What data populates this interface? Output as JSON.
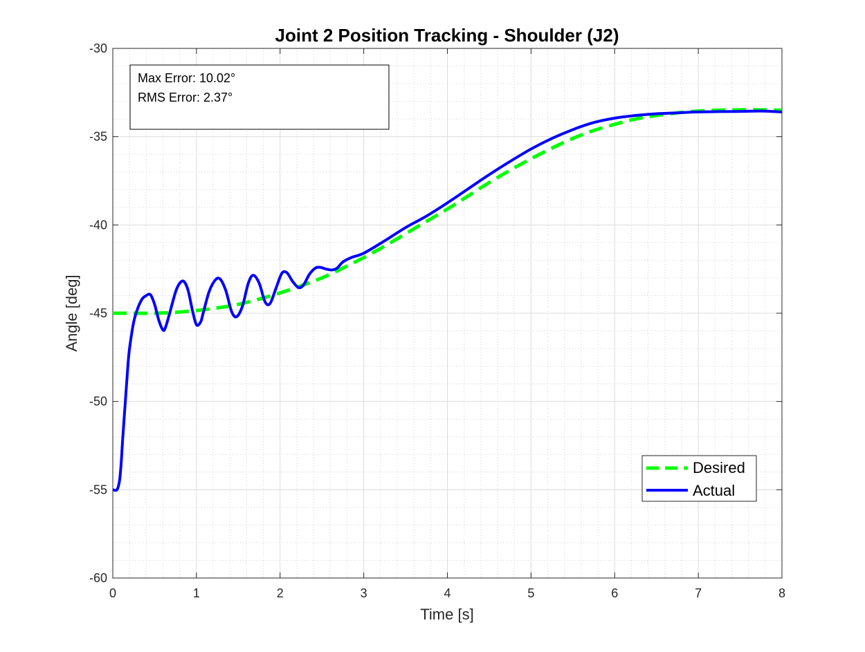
{
  "chart_data": {
    "type": "line",
    "title": "Joint 2 Position Tracking - Shoulder (J2)",
    "xlabel": "Time [s]",
    "ylabel": "Angle [deg]",
    "xlim": [
      0,
      8
    ],
    "ylim": [
      -60,
      -30
    ],
    "x_ticks": [
      "0",
      "1",
      "2",
      "3",
      "4",
      "5",
      "6",
      "7",
      "8"
    ],
    "y_ticks": [
      "-30",
      "-35",
      "-40",
      "-45",
      "-50",
      "-55",
      "-60"
    ],
    "grid": true,
    "minor_grid": true,
    "legend_position": "bottom-right",
    "annotation": [
      "Max Error: 10.02°",
      "RMS Error: 2.37°"
    ],
    "series": [
      {
        "name": "Desired",
        "color": "#00ff00",
        "style": "dashed",
        "x": [
          0,
          0.25,
          0.5,
          0.75,
          1.0,
          1.25,
          1.5,
          1.75,
          2.0,
          2.25,
          2.5,
          2.75,
          3.0,
          3.25,
          3.5,
          3.75,
          4.0,
          4.25,
          4.5,
          4.75,
          5.0,
          5.25,
          5.5,
          5.75,
          6.0,
          6.25,
          6.5,
          6.75,
          7.0,
          7.25,
          7.5,
          7.75,
          8.0
        ],
        "y": [
          -45.0,
          -45.0,
          -45.0,
          -44.95,
          -44.85,
          -44.7,
          -44.5,
          -44.2,
          -43.85,
          -43.45,
          -43.0,
          -42.45,
          -41.85,
          -41.2,
          -40.5,
          -39.8,
          -39.1,
          -38.35,
          -37.6,
          -36.9,
          -36.25,
          -35.65,
          -35.1,
          -34.65,
          -34.3,
          -34.0,
          -33.8,
          -33.65,
          -33.55,
          -33.5,
          -33.48,
          -33.48,
          -33.5
        ]
      },
      {
        "name": "Actual",
        "color": "#0000ff",
        "style": "solid",
        "x": [
          0,
          0.05,
          0.08,
          0.1,
          0.12,
          0.15,
          0.18,
          0.2,
          0.25,
          0.3,
          0.35,
          0.4,
          0.45,
          0.5,
          0.55,
          0.6,
          0.63,
          0.68,
          0.75,
          0.8,
          0.85,
          0.9,
          0.95,
          1.0,
          1.05,
          1.08,
          1.15,
          1.22,
          1.28,
          1.35,
          1.42,
          1.48,
          1.55,
          1.62,
          1.68,
          1.75,
          1.82,
          1.88,
          1.95,
          2.02,
          2.08,
          2.15,
          2.22,
          2.28,
          2.35,
          2.42,
          2.48,
          2.55,
          2.62,
          2.68,
          2.75,
          2.85,
          3.0,
          3.25,
          3.5,
          3.75,
          4.0,
          4.25,
          4.5,
          4.75,
          5.0,
          5.25,
          5.5,
          5.75,
          6.0,
          6.25,
          6.5,
          6.75,
          7.0,
          7.25,
          7.5,
          7.75,
          8.0
        ],
        "y": [
          -55.0,
          -55.0,
          -54.5,
          -53.5,
          -52.0,
          -50.0,
          -48.0,
          -47.0,
          -45.5,
          -44.7,
          -44.2,
          -44.0,
          -43.95,
          -44.5,
          -45.4,
          -45.95,
          -45.8,
          -45.0,
          -43.8,
          -43.3,
          -43.2,
          -43.7,
          -44.8,
          -45.65,
          -45.5,
          -45.0,
          -43.8,
          -43.15,
          -43.05,
          -43.7,
          -44.9,
          -45.2,
          -44.6,
          -43.3,
          -42.85,
          -43.3,
          -44.35,
          -44.45,
          -43.6,
          -42.75,
          -42.7,
          -43.2,
          -43.55,
          -43.4,
          -42.8,
          -42.45,
          -42.4,
          -42.5,
          -42.55,
          -42.45,
          -42.1,
          -41.85,
          -41.6,
          -40.9,
          -40.15,
          -39.5,
          -38.75,
          -37.95,
          -37.15,
          -36.4,
          -35.7,
          -35.1,
          -34.6,
          -34.2,
          -33.95,
          -33.8,
          -33.7,
          -33.65,
          -33.6,
          -33.58,
          -33.57,
          -33.55,
          -33.6
        ]
      }
    ]
  }
}
